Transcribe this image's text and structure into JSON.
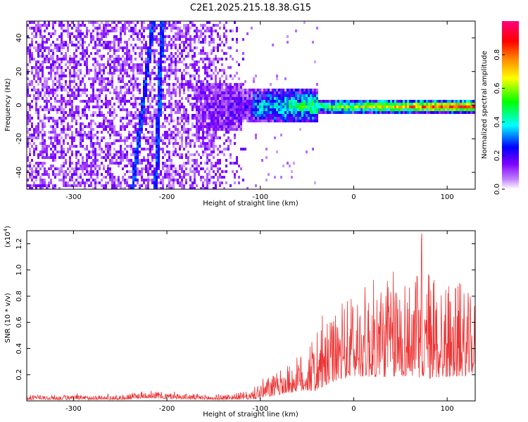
{
  "chart_data": [
    {
      "type": "heatmap",
      "title": "C2E1.2025.215.18.38.G15",
      "xlabel": "Height of straight line (km)",
      "ylabel": "Frequency (Hz)",
      "xlim": [
        -350,
        130
      ],
      "ylim": [
        -50,
        50
      ],
      "x_ticks": [
        -300,
        -200,
        -100,
        0,
        100
      ],
      "y_ticks": [
        -40,
        -20,
        0,
        20,
        40
      ],
      "colorbar": {
        "label": "Normalized spectral amplitude",
        "ticks": [
          0.0,
          0.2,
          0.4,
          0.6,
          0.8
        ],
        "range": [
          0,
          1
        ],
        "colors": [
          "#ffffff",
          "#7f00ff",
          "#0000ff",
          "#00ffff",
          "#00ff00",
          "#ffff00",
          "#ff8000",
          "#ff0000",
          "#ff0080"
        ]
      },
      "noise_region": [
        -350,
        -110
      ],
      "signal_center_hz": 0,
      "tracks": [
        {
          "x": [
            -238,
            -216
          ],
          "y": [
            -50,
            50
          ]
        },
        {
          "x": [
            -213,
            -206
          ],
          "y": [
            -50,
            50
          ]
        }
      ]
    },
    {
      "type": "line",
      "xlabel": "Height of straight line (km)",
      "ylabel": "SNR (10 * v/v)",
      "yscale_label": "(x10^4)",
      "xlim": [
        -350,
        130
      ],
      "ylim": [
        0,
        1.3
      ],
      "x_ticks": [
        -300,
        -200,
        -100,
        0,
        100
      ],
      "y_ticks": [
        0.2,
        0.4,
        0.6,
        0.8,
        1.0,
        1.2
      ],
      "color": "#ee3333",
      "envelope": {
        "x": [
          -350,
          -250,
          -220,
          -200,
          -150,
          -110,
          -100,
          -80,
          -60,
          -40,
          -20,
          0,
          20,
          40,
          60,
          80,
          100,
          120,
          130
        ],
        "base": [
          0.02,
          0.02,
          0.04,
          0.03,
          0.02,
          0.03,
          0.06,
          0.1,
          0.15,
          0.2,
          0.3,
          0.38,
          0.4,
          0.42,
          0.42,
          0.42,
          0.4,
          0.38,
          0.38
        ],
        "amp": [
          0.03,
          0.03,
          0.05,
          0.04,
          0.03,
          0.05,
          0.12,
          0.15,
          0.22,
          0.35,
          0.42,
          0.55,
          0.62,
          0.68,
          0.65,
          0.72,
          0.62,
          0.55,
          0.45
        ]
      }
    }
  ],
  "labels": {
    "title": "C2E1.2025.215.18.38.G15",
    "xlabel_top": "Height of straight line (km)",
    "ylabel_top": "Frequency (Hz)",
    "xlabel_bottom": "Height of straight line (km)",
    "ylabel_bottom": "SNR (10 * v/v)",
    "scale_bottom": "(x10",
    "scale_exp": "4",
    "scale_close": ")",
    "colorbar_label": "Normalized spectral amplitude"
  }
}
